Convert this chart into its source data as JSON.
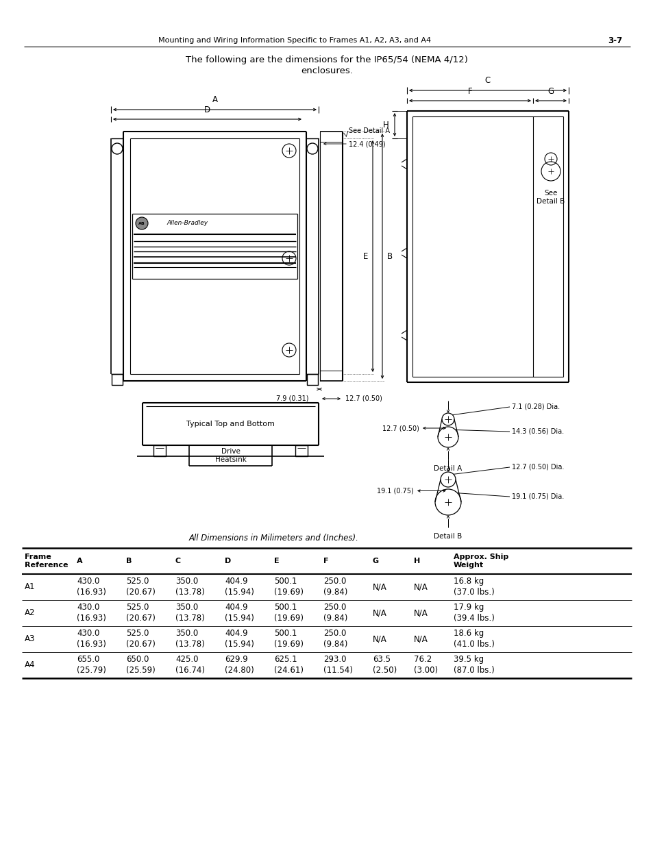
{
  "page_header_left": "Mounting and Wiring Information Specific to Frames A1, A2, A3, and A4",
  "page_header_right": "3-7",
  "title_line1": "The following are the dimensions for the IP65/54 (NEMA 4/12)",
  "title_line2": "enclosures.",
  "dim_caption": "All Dimensions in Milimeters and (Inches).",
  "table_headers": [
    "Frame\nReference",
    "A",
    "B",
    "C",
    "D",
    "E",
    "F",
    "G",
    "H",
    "Approx. Ship\nWeight"
  ],
  "table_rows": [
    [
      "A1",
      "430.0\n(16.93)",
      "525.0\n(20.67)",
      "350.0\n(13.78)",
      "404.9\n(15.94)",
      "500.1\n(19.69)",
      "250.0\n(9.84)",
      "N/A",
      "N/A",
      "16.8 kg\n(37.0 lbs.)"
    ],
    [
      "A2",
      "430.0\n(16.93)",
      "525.0\n(20.67)",
      "350.0\n(13.78)",
      "404.9\n(15.94)",
      "500.1\n(19.69)",
      "250.0\n(9.84)",
      "N/A",
      "N/A",
      "17.9 kg\n(39.4 lbs.)"
    ],
    [
      "A3",
      "430.0\n(16.93)",
      "525.0\n(20.67)",
      "350.0\n(13.78)",
      "404.9\n(15.94)",
      "500.1\n(19.69)",
      "250.0\n(9.84)",
      "N/A",
      "N/A",
      "18.6 kg\n(41.0 lbs.)"
    ],
    [
      "A4",
      "655.0\n(25.79)",
      "650.0\n(25.59)",
      "425.0\n(16.74)",
      "629.9\n(24.80)",
      "625.1\n(24.61)",
      "293.0\n(11.54)",
      "63.5\n(2.50)",
      "76.2\n(3.00)",
      "39.5 kg\n(87.0 lbs.)"
    ]
  ],
  "background_color": "#ffffff",
  "text_color": "#000000",
  "line_color": "#000000",
  "see_detail_a": "See Detail A",
  "dim_12_4": "12.4 (0.49)",
  "dim_7_9": "7.9 (0.31)",
  "dim_12_7_bot": "12.7 (0.50)",
  "see_detail_b": "See\nDetail B",
  "typical_text": "Typical Top and Bottom",
  "drive_heatsink": "Drive\nHeatsink",
  "detail_a_label": "Detail A",
  "detail_b_label": "Detail B",
  "detail_a_dim1": "7.1 (0.28) Dia.",
  "detail_a_dim2": "14.3 (0.56) Dia.",
  "detail_a_dim3": "12.7 (0.50)",
  "detail_b_dim1": "12.7 (0.50) Dia.",
  "detail_b_dim2": "19.1 (0.75) Dia.",
  "detail_b_dim3": "19.1 (0.75)"
}
